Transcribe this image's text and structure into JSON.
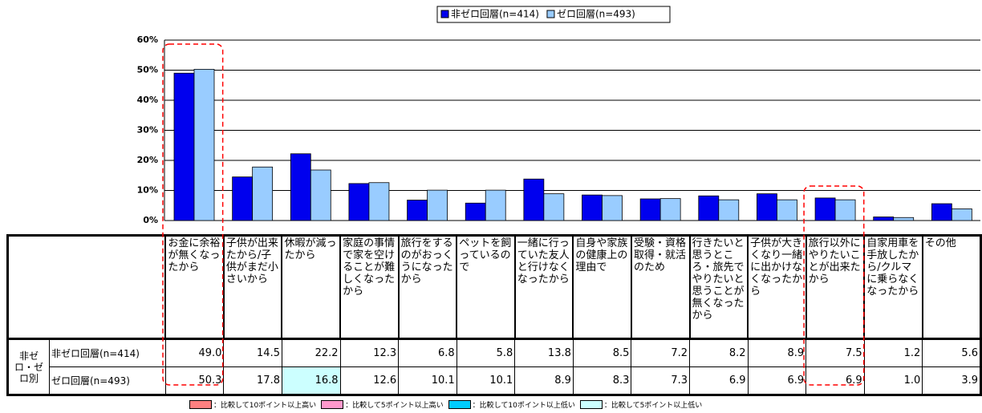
{
  "chart_data": {
    "type": "bar",
    "categories": [
      "お金に余裕が無くなったから",
      "子供が出来たから/子供がまだ小さいから",
      "休暇が減ったから",
      "家庭の事情で家を空けることが難しくなったから",
      "旅行をするのがおっくうになったから",
      "ペットを飼っているので",
      "一緒に行っていた友人と行けなくなったから",
      "自身や家族の健康上の理由で",
      "受験・資格取得・就活のため",
      "行きたいと思うところ・旅先でやりたいと思うことが無くなったから",
      "子供が大きくなり一緒に出かけなくなったから",
      "旅行以外にやりたいことが出来たから",
      "自家用車を手放したから/クルマに乗らなくなったから",
      "その他"
    ],
    "series": [
      {
        "name": "非ゼロ回層(n=414)",
        "color": "#0000ee",
        "values": [
          49.0,
          14.5,
          22.2,
          12.3,
          6.8,
          5.8,
          13.8,
          8.5,
          7.2,
          8.2,
          8.9,
          7.5,
          1.2,
          5.6
        ],
        "value_labels": [
          "49.0",
          "14.5",
          "22.2",
          "12.3",
          "6.8",
          "5.8",
          "13.8",
          "8.5",
          "7.2",
          "8.2",
          "8.9",
          "7.5",
          "1.2",
          "5.6"
        ]
      },
      {
        "name": "ゼロ回層(n=493)",
        "color": "#99ccff",
        "values": [
          50.3,
          17.8,
          16.8,
          12.6,
          10.1,
          10.1,
          8.9,
          8.3,
          7.3,
          6.9,
          6.9,
          6.9,
          1.0,
          3.9
        ],
        "value_labels": [
          "50.3",
          "17.8",
          "16.8",
          "12.6",
          "10.1",
          "10.1",
          "8.9",
          "8.3",
          "7.3",
          "6.9",
          "6.9",
          "6.9",
          "1.0",
          "3.9"
        ]
      }
    ],
    "row_group_label": "非ゼロ・ゼロ別",
    "ylim": [
      0,
      60
    ],
    "yticks": [
      {
        "value": 0,
        "label": "0%"
      },
      {
        "value": 10,
        "label": "10%"
      },
      {
        "value": 20,
        "label": "20%"
      },
      {
        "value": 30,
        "label": "30%"
      },
      {
        "value": 40,
        "label": "40%"
      },
      {
        "value": 50,
        "label": "50%"
      },
      {
        "value": 60,
        "label": "60%"
      }
    ],
    "grid": true,
    "highlighted_columns": [
      0,
      11
    ],
    "cell_highlights": [
      {
        "series": 1,
        "index": 2,
        "color": "#ccffff"
      }
    ],
    "highlight_key": [
      {
        "color": "#ff8080",
        "label": "：比較して10ポイント以上高い"
      },
      {
        "color": "#ff99cc",
        "label": "：比較して5ポイント以上高い"
      },
      {
        "color": "#00ccff",
        "label": "：比較して10ポイント以上低い"
      },
      {
        "color": "#ccffff",
        "label": "：比較して5ポイント以上低い"
      }
    ]
  }
}
